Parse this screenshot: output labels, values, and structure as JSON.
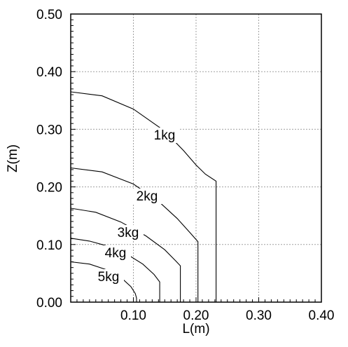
{
  "chart_data": {
    "type": "line",
    "xlabel": "L(m)",
    "ylabel": "Z(m)",
    "xlim": [
      0,
      0.4
    ],
    "ylim": [
      0,
      0.5
    ],
    "x_ticks": [
      "0.10",
      "0.20",
      "0.30",
      "0.40"
    ],
    "y_ticks": [
      "0.00",
      "0.10",
      "0.20",
      "0.30",
      "0.40",
      "0.50"
    ],
    "grid": true,
    "series": [
      {
        "name": "1kg",
        "points": [
          [
            0,
            0.365
          ],
          [
            0.05,
            0.358
          ],
          [
            0.1,
            0.335
          ],
          [
            0.15,
            0.297
          ],
          [
            0.18,
            0.263
          ],
          [
            0.2,
            0.238
          ],
          [
            0.215,
            0.222
          ],
          [
            0.232,
            0.21
          ],
          [
            0.232,
            0
          ]
        ]
      },
      {
        "name": "2kg",
        "points": [
          [
            0,
            0.233
          ],
          [
            0.05,
            0.226
          ],
          [
            0.1,
            0.205
          ],
          [
            0.14,
            0.175
          ],
          [
            0.17,
            0.145
          ],
          [
            0.19,
            0.121
          ],
          [
            0.203,
            0.105
          ],
          [
            0.203,
            0
          ]
        ]
      },
      {
        "name": "3kg",
        "points": [
          [
            0,
            0.163
          ],
          [
            0.04,
            0.156
          ],
          [
            0.08,
            0.139
          ],
          [
            0.12,
            0.115
          ],
          [
            0.15,
            0.091
          ],
          [
            0.168,
            0.071
          ],
          [
            0.175,
            0.063
          ],
          [
            0.175,
            0
          ]
        ]
      },
      {
        "name": "4kg",
        "points": [
          [
            0,
            0.111
          ],
          [
            0.03,
            0.106
          ],
          [
            0.06,
            0.097
          ],
          [
            0.09,
            0.083
          ],
          [
            0.115,
            0.066
          ],
          [
            0.133,
            0.048
          ],
          [
            0.142,
            0.035
          ],
          [
            0.142,
            0
          ]
        ]
      },
      {
        "name": "5kg",
        "points": [
          [
            0,
            0.07
          ],
          [
            0.03,
            0.066
          ],
          [
            0.055,
            0.057
          ],
          [
            0.08,
            0.043
          ],
          [
            0.096,
            0.027
          ],
          [
            0.103,
            0.015
          ],
          [
            0.105,
            0.007
          ],
          [
            0.105,
            0
          ]
        ]
      }
    ],
    "contour_labels": [
      "1kg",
      "2kg",
      "3kg",
      "4kg",
      "5kg"
    ],
    "colors": {
      "lines": "#000000",
      "grid": "#a0a0a0"
    }
  }
}
